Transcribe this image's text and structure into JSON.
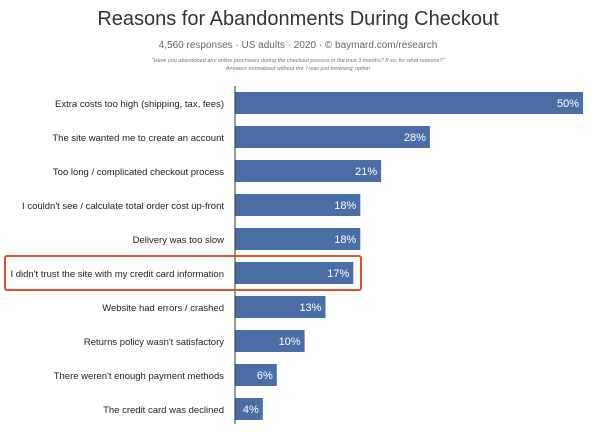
{
  "chart_data": {
    "type": "bar",
    "orientation": "horizontal",
    "title": "Reasons for Abandonments During Checkout",
    "subtitle": "4,560 responses  ·  US adults  ·  2020  ·  ©  baymard.com/research",
    "note_lines": [
      "\"Have you abandoned any online purchases during the checkout process in the past 3 months? If so, for what reasons?\"",
      "Answers normalized without the 'I was just browsing' option"
    ],
    "categories": [
      "Extra costs too high (shipping, tax, fees)",
      "The site wanted me to create an account",
      "Too long / complicated checkout process",
      "I couldn't see / calculate total order cost up-front",
      "Delivery was too slow",
      "I didn't trust the site with my credit card information",
      "Website had errors / crashed",
      "Returns policy wasn't satisfactory",
      "There weren't enough payment methods",
      "The credit card was declined"
    ],
    "values": [
      50,
      28,
      21,
      18,
      18,
      17,
      13,
      10,
      6,
      4
    ],
    "value_labels": [
      "50%",
      "28%",
      "21%",
      "18%",
      "18%",
      "17%",
      "13%",
      "10%",
      "6%",
      "4%"
    ],
    "unit": "%",
    "xlim": [
      0,
      50
    ],
    "highlighted_category_index": 5,
    "grid": false,
    "legend": "none",
    "colors": {
      "bar": "#4a6ea5",
      "bar_label": "#ffffff",
      "highlight_box": "#d9532c",
      "axis_line": "#333333",
      "category_text": "#222222"
    }
  }
}
